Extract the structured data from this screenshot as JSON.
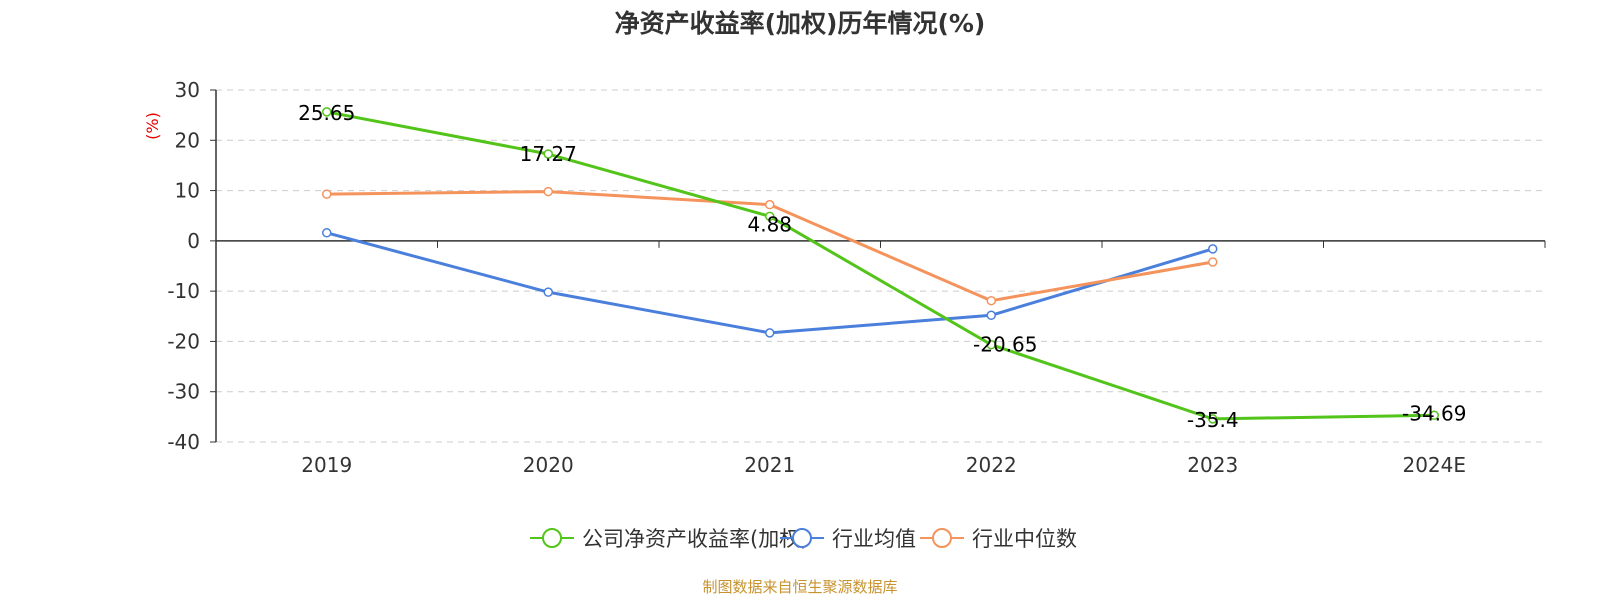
{
  "chart_data": {
    "type": "line",
    "title": "净资产收益率(加权)历年情况(%)",
    "ylabel": "(%)",
    "xlabel": "",
    "categories": [
      "2019",
      "2020",
      "2021",
      "2022",
      "2023",
      "2024E"
    ],
    "ylim": [
      -40,
      30
    ],
    "yticks": [
      30,
      20,
      10,
      0,
      -10,
      -20,
      -30,
      -40
    ],
    "grid": true,
    "legend_position": "bottom-center",
    "series": [
      {
        "name": "公司净资产收益率(加权)",
        "color": "#52c41a",
        "values": [
          25.65,
          17.27,
          4.88,
          -20.65,
          -35.4,
          -34.69
        ],
        "labels": [
          "25.65",
          "17.27",
          "4.88",
          "-20.65",
          "-35.4",
          "-34.69"
        ]
      },
      {
        "name": "行业均值",
        "color": "#4a7fdb",
        "values": [
          1.6,
          -10.2,
          -18.3,
          -14.8,
          -1.6,
          null
        ]
      },
      {
        "name": "行业中位数",
        "color": "#f5935c",
        "values": [
          9.3,
          9.8,
          7.2,
          -11.9,
          -4.2,
          null
        ]
      }
    ]
  },
  "source_text": "制图数据来自恒生聚源数据库"
}
